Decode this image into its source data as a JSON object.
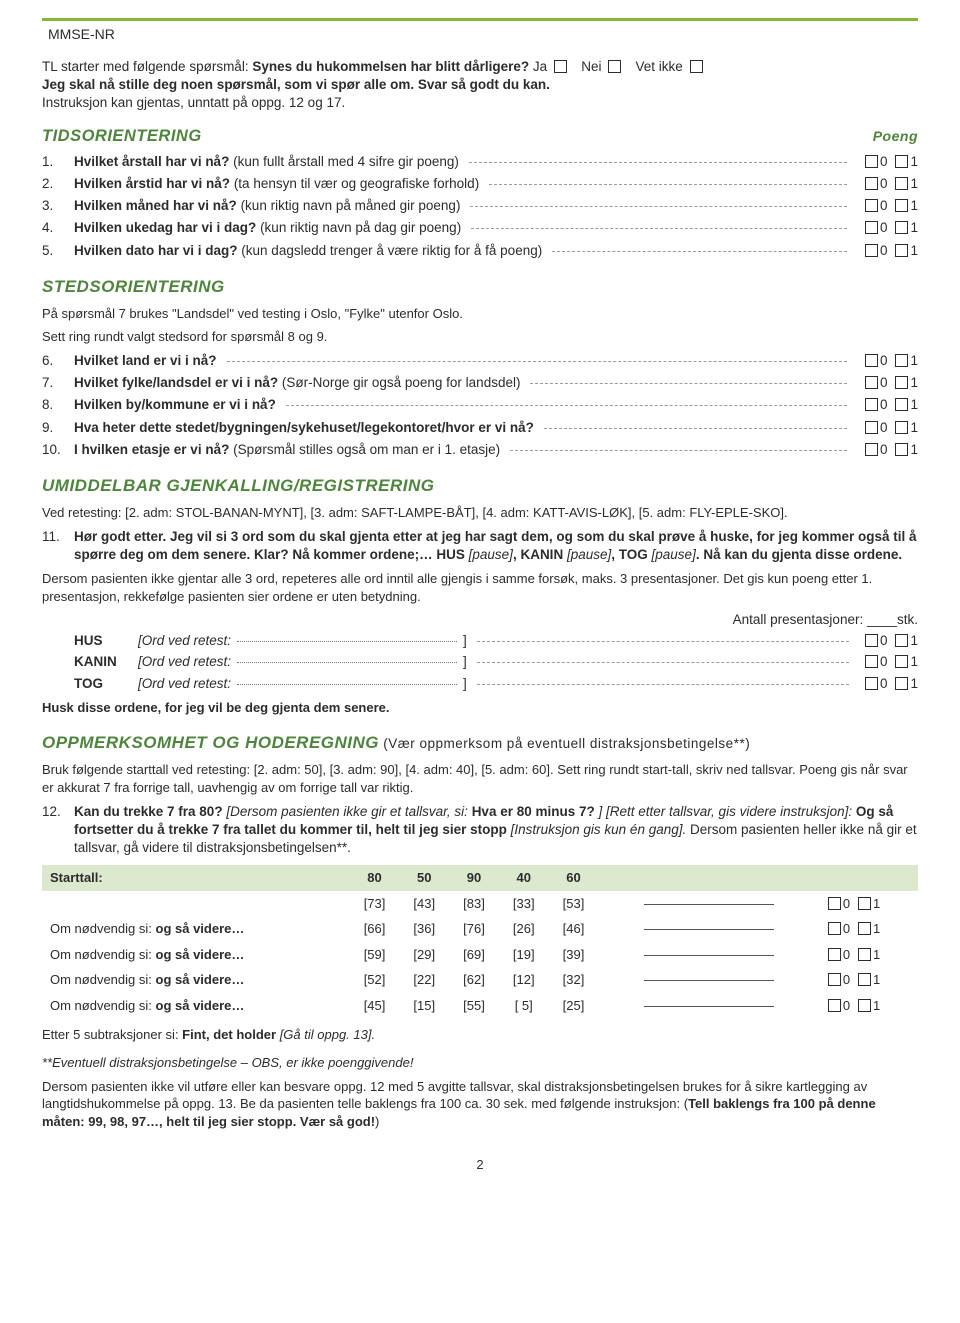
{
  "header": {
    "code": "MMSE-NR",
    "accent_color": "#86b43c"
  },
  "intro": {
    "line1_pre": "TL starter med følgende spørsmål: ",
    "line1_q": "Synes du hukommelsen har blitt dårligere?",
    "opt_ja": "Ja",
    "opt_nei": "Nei",
    "opt_vet": "Vet ikke",
    "line2": "Jeg skal nå stille deg noen spørsmål, som vi spør alle om. Svar så godt du kan.",
    "line3": "Instruksjon kan gjentas, unntatt på oppg. 12 og 17."
  },
  "time": {
    "title": "TIDSORIENTERING",
    "poeng": "Poeng",
    "items": [
      {
        "n": "1.",
        "b": "Hvilket årstall har vi nå?",
        "rest": " (kun fullt årstall med 4 sifre gir poeng)"
      },
      {
        "n": "2.",
        "b": "Hvilken årstid har vi nå?",
        "rest": " (ta hensyn til vær og geografiske forhold)"
      },
      {
        "n": "3.",
        "b": "Hvilken måned har vi nå?",
        "rest": " (kun riktig navn på måned gir poeng)"
      },
      {
        "n": "4.",
        "b": "Hvilken ukedag har vi i dag?",
        "rest": " (kun riktig navn på dag gir poeng)"
      },
      {
        "n": "5.",
        "b": "Hvilken dato har vi i dag?",
        "rest": " (kun dagsledd trenger å være riktig for å få poeng)"
      }
    ]
  },
  "place": {
    "title": "STEDSORIENTERING",
    "sub1": "På spørsmål 7 brukes \"Landsdel\" ved testing i Oslo, \"Fylke\" utenfor Oslo.",
    "sub2": "Sett ring rundt valgt stedsord for spørsmål 8 og 9.",
    "items": [
      {
        "n": "6.",
        "b": "Hvilket land er vi i nå?",
        "rest": ""
      },
      {
        "n": "7.",
        "b": "Hvilket fylke/landsdel er vi i nå?",
        "rest": " (Sør-Norge gir også poeng for landsdel)"
      },
      {
        "n": "8.",
        "b": "Hvilken by/kommune er vi i nå?",
        "rest": ""
      },
      {
        "n": "9.",
        "b": "Hva heter dette stedet/bygningen/sykehuset/legekontoret/hvor er vi nå?",
        "rest": ""
      },
      {
        "n": "10.",
        "b": "I hvilken etasje er vi nå?",
        "rest": " (Spørsmål stilles også om man er i 1. etasje)"
      }
    ]
  },
  "recall": {
    "title": "UMIDDELBAR GJENKALLING/REGISTRERING",
    "sub": "Ved retesting: [2. adm: STOL-BANAN-MYNT], [3. adm: SAFT-LAMPE-BÅT], [4. adm: KATT-AVIS-LØK], [5. adm: FLY-EPLE-SKO].",
    "q11_n": "11.",
    "q11_text": "Hør godt etter. Jeg vil si 3 ord som du skal gjenta etter at jeg har sagt dem, og som du skal prøve å huske, for jeg kommer også til å spørre deg om dem senere. Klar? Nå kommer ordene;… HUS [pause], KANIN [pause], TOG [pause]. Nå kan du gjenta disse ordene.",
    "note": "Dersom pasienten ikke gjentar alle 3 ord, repeteres alle ord inntil alle gjengis i samme forsøk, maks. 3 presentasjoner. Det gis kun poeng etter 1. presentasjon, rekkefølge pasienten sier ordene er uten betydning.",
    "ant": "Antall presentasjoner: ____stk.",
    "words": [
      {
        "w": "HUS",
        "ret": "[Ord ved retest:"
      },
      {
        "w": "KANIN",
        "ret": "[Ord ved retest:"
      },
      {
        "w": "TOG",
        "ret": "[Ord ved retest:"
      }
    ],
    "husk": "Husk disse ordene, for jeg vil be deg gjenta dem senere."
  },
  "attn": {
    "title": "OPPMERKSOMHET OG HODEREGNING",
    "paren": " (Vær oppmerksom på eventuell distraksjonsbetingelse**)",
    "sub": "Bruk følgende starttall ved retesting: [2. adm: 50], [3. adm: 90], [4. adm: 40], [5. adm: 60]. Sett ring rundt start-tall, skriv ned tallsvar. Poeng gis når svar er akkurat 7 fra forrige tall, uavhengig av om forrige tall var riktig.",
    "q12_n": "12.",
    "q12_p1": "Kan du trekke 7 fra 80?",
    "q12_it1": " [Dersom pasienten ikke gir et tallsvar, si: ",
    "q12_b1": "Hva er 80 minus 7?",
    "q12_it2": "] [Rett etter tallsvar, gis videre instruksjon]: ",
    "q12_b2": "Og så fortsetter du å trekke 7 fra tallet du kommer til, helt til jeg sier stopp",
    "q12_it3": " [Instruksjon gis kun én gang]. ",
    "q12_rest": "Dersom pasienten heller ikke nå gir et tallsvar, gå videre til distraksjonsbetingelsen**.",
    "table": {
      "header_label": "Starttall:",
      "cols": [
        "80",
        "50",
        "90",
        "40",
        "60"
      ],
      "row_label_first": "",
      "row_label": "Om nødvendig si: og så videre…",
      "rows": [
        [
          "[73]",
          "[43]",
          "[83]",
          "[33]",
          "[53]"
        ],
        [
          "[66]",
          "[36]",
          "[76]",
          "[26]",
          "[46]"
        ],
        [
          "[59]",
          "[29]",
          "[69]",
          "[19]",
          "[39]"
        ],
        [
          "[52]",
          "[22]",
          "[62]",
          "[12]",
          "[32]"
        ],
        [
          "[45]",
          "[15]",
          "[55]",
          "[ 5]",
          "[25]"
        ]
      ]
    },
    "after": "Etter 5 subtraksjoner si: ",
    "after_b": "Fint, det holder",
    "after_it": " [Gå til oppg. 13].",
    "star1": "**Eventuell distraksjonsbetingelse – OBS, er ikke poenggivende!",
    "star2_pre": "Dersom pasienten ikke vil utføre eller kan besvare oppg. 12 med 5 avgitte tallsvar, skal distraksjonsbetingelsen brukes for å sikre kartlegging av langtidshukommelse på oppg. 13. Be da pasienten telle baklengs fra 100 ca. 30 sek. med følgende instruksjon: (",
    "star2_b": "Tell baklengs fra 100 på denne måten: 99, 98, 97…, helt til jeg sier stopp. Vær så god!",
    "star2_post": ")"
  },
  "page_num": "2",
  "score": {
    "zero": "0",
    "one": "1"
  }
}
